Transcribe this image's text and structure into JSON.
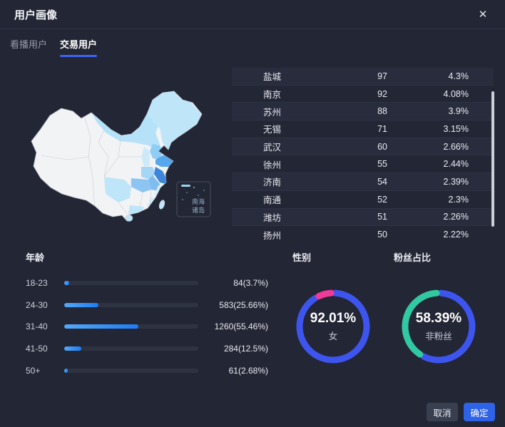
{
  "modal": {
    "title": "用户画像",
    "close_glyph": "✕"
  },
  "tabs": [
    {
      "label": "看播用户",
      "active": false
    },
    {
      "label": "交易用户",
      "active": true
    }
  ],
  "city_table": {
    "rows": [
      {
        "city": "盐城",
        "count": "97",
        "pct": "4.3%"
      },
      {
        "city": "南京",
        "count": "92",
        "pct": "4.08%"
      },
      {
        "city": "苏州",
        "count": "88",
        "pct": "3.9%"
      },
      {
        "city": "无锡",
        "count": "71",
        "pct": "3.15%"
      },
      {
        "city": "武汉",
        "count": "60",
        "pct": "2.66%"
      },
      {
        "city": "徐州",
        "count": "55",
        "pct": "2.44%"
      },
      {
        "city": "济南",
        "count": "54",
        "pct": "2.39%"
      },
      {
        "city": "南通",
        "count": "52",
        "pct": "2.3%"
      },
      {
        "city": "潍坊",
        "count": "51",
        "pct": "2.26%"
      },
      {
        "city": "扬州",
        "count": "50",
        "pct": "2.22%"
      }
    ]
  },
  "map": {
    "inset_label_line1": "南海",
    "inset_label_line2": "诸岛",
    "palette": {
      "base": "#f2f3f5",
      "light": "#bfe5f9",
      "pale": "#d5ecfb",
      "medium": "#8ecdf4",
      "strong": "#57a7ec",
      "deepest": "#3e85dc",
      "border": "#b9bec9"
    }
  },
  "age": {
    "title": "年龄",
    "bar_colors": [
      "#55a9f7",
      "#1e7df3"
    ],
    "rows": [
      {
        "label": "18-23",
        "count": 84,
        "pct": 3.7,
        "text": "84(3.7%)"
      },
      {
        "label": "24-30",
        "count": 583,
        "pct": 25.66,
        "text": "583(25.66%)"
      },
      {
        "label": "31-40",
        "count": 1260,
        "pct": 55.46,
        "text": "1260(55.46%)"
      },
      {
        "label": "41-50",
        "count": 284,
        "pct": 12.5,
        "text": "284(12.5%)"
      },
      {
        "label": "50+",
        "count": 61,
        "pct": 2.68,
        "text": "61(2.68%)"
      }
    ]
  },
  "gender": {
    "title": "性别",
    "value_text": "92.01%",
    "center_label": "女",
    "value_pct": 92.01,
    "colors": [
      "#3d55ee",
      "#ef3a97"
    ]
  },
  "fans": {
    "title": "粉丝占比",
    "value_text": "58.39%",
    "center_label": "非粉丝",
    "value_pct": 58.39,
    "colors": [
      "#3d55ee",
      "#31c9a2"
    ]
  },
  "footer": {
    "cancel_label": "取消",
    "confirm_label": "确定"
  },
  "colors": {
    "modal_bg": "#232634",
    "tab_underline": "#3e63f4",
    "confirm_blue": "#2e63e8",
    "donut_blue": "#3d55ee",
    "donut_pink": "#ef3a97",
    "donut_teal": "#31c9a2"
  },
  "chart_data": [
    {
      "type": "table",
      "name": "city-distribution",
      "rows": [
        [
          "盐城",
          97,
          "4.3%"
        ],
        [
          "南京",
          92,
          "4.08%"
        ],
        [
          "苏州",
          88,
          "3.9%"
        ],
        [
          "无锡",
          71,
          "3.15%"
        ],
        [
          "武汉",
          60,
          "2.66%"
        ],
        [
          "徐州",
          55,
          "2.44%"
        ],
        [
          "济南",
          54,
          "2.39%"
        ],
        [
          "南通",
          52,
          "2.3%"
        ],
        [
          "潍坊",
          51,
          "2.26%"
        ],
        [
          "扬州",
          50,
          "2.22%"
        ]
      ]
    },
    {
      "type": "bar",
      "name": "age-distribution",
      "title": "年龄",
      "categories": [
        "18-23",
        "24-30",
        "31-40",
        "41-50",
        "50+"
      ],
      "values": [
        84,
        583,
        1260,
        284,
        61
      ],
      "percents": [
        3.7,
        25.66,
        55.46,
        12.5,
        2.68
      ],
      "xlim": [
        0,
        100
      ],
      "orientation": "horizontal"
    },
    {
      "type": "pie",
      "name": "gender",
      "title": "性别",
      "slices": [
        {
          "label": "女",
          "value": 92.01,
          "color": "#3d55ee"
        },
        {
          "label": "",
          "value": 7.99,
          "color": "#ef3a97"
        }
      ],
      "center_text": "92.01%",
      "center_label": "女"
    },
    {
      "type": "pie",
      "name": "fans-ratio",
      "title": "粉丝占比",
      "slices": [
        {
          "label": "非粉丝",
          "value": 58.39,
          "color": "#3d55ee"
        },
        {
          "label": "",
          "value": 41.61,
          "color": "#31c9a2"
        }
      ],
      "center_text": "58.39%",
      "center_label": "非粉丝"
    },
    {
      "type": "heatmap",
      "name": "china-province-map",
      "note": "choropleth of China, east coast provinces shaded blue (Jiangsu darkest, Shandong strong), inset 南海诸岛",
      "inset_label": "南海诸岛"
    }
  ]
}
